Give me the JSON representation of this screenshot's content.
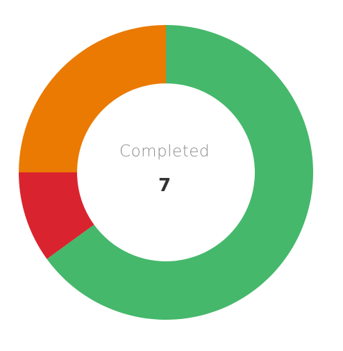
{
  "chart_data": {
    "type": "pie",
    "variant": "donut",
    "slices": [
      {
        "value": 65,
        "color": "#45b86b"
      },
      {
        "value": 10,
        "color": "#d9242f"
      },
      {
        "value": 25,
        "color": "#ea7a02"
      }
    ],
    "center": {
      "label": "Completed",
      "value": "7"
    }
  }
}
